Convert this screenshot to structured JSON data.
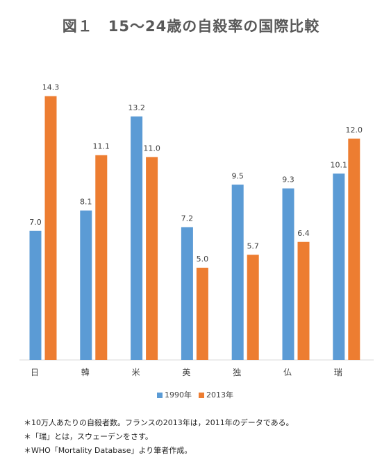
{
  "chart_data": {
    "type": "bar",
    "title": "図１　15〜24歳の自殺率の国際比較",
    "categories": [
      "日",
      "韓",
      "米",
      "英",
      "独",
      "仏",
      "瑞"
    ],
    "series": [
      {
        "name": "1990年",
        "color": "#5B9BD5",
        "values": [
          7.0,
          8.1,
          13.2,
          7.2,
          9.5,
          9.3,
          10.1
        ]
      },
      {
        "name": "2013年",
        "color": "#ED7D31",
        "values": [
          14.3,
          11.1,
          11.0,
          5.0,
          5.7,
          6.4,
          12.0
        ]
      }
    ],
    "ylim": [
      0,
      15
    ],
    "grid": false,
    "legend_position": "bottom",
    "data_labels": true
  },
  "notes": [
    "＊10万人あたりの自殺者数。フランスの2013年は，2011年のデータである。",
    "＊「瑞」とは，スウェーデンをさす。",
    "＊WHO「Mortality Database」より筆者作成。"
  ]
}
